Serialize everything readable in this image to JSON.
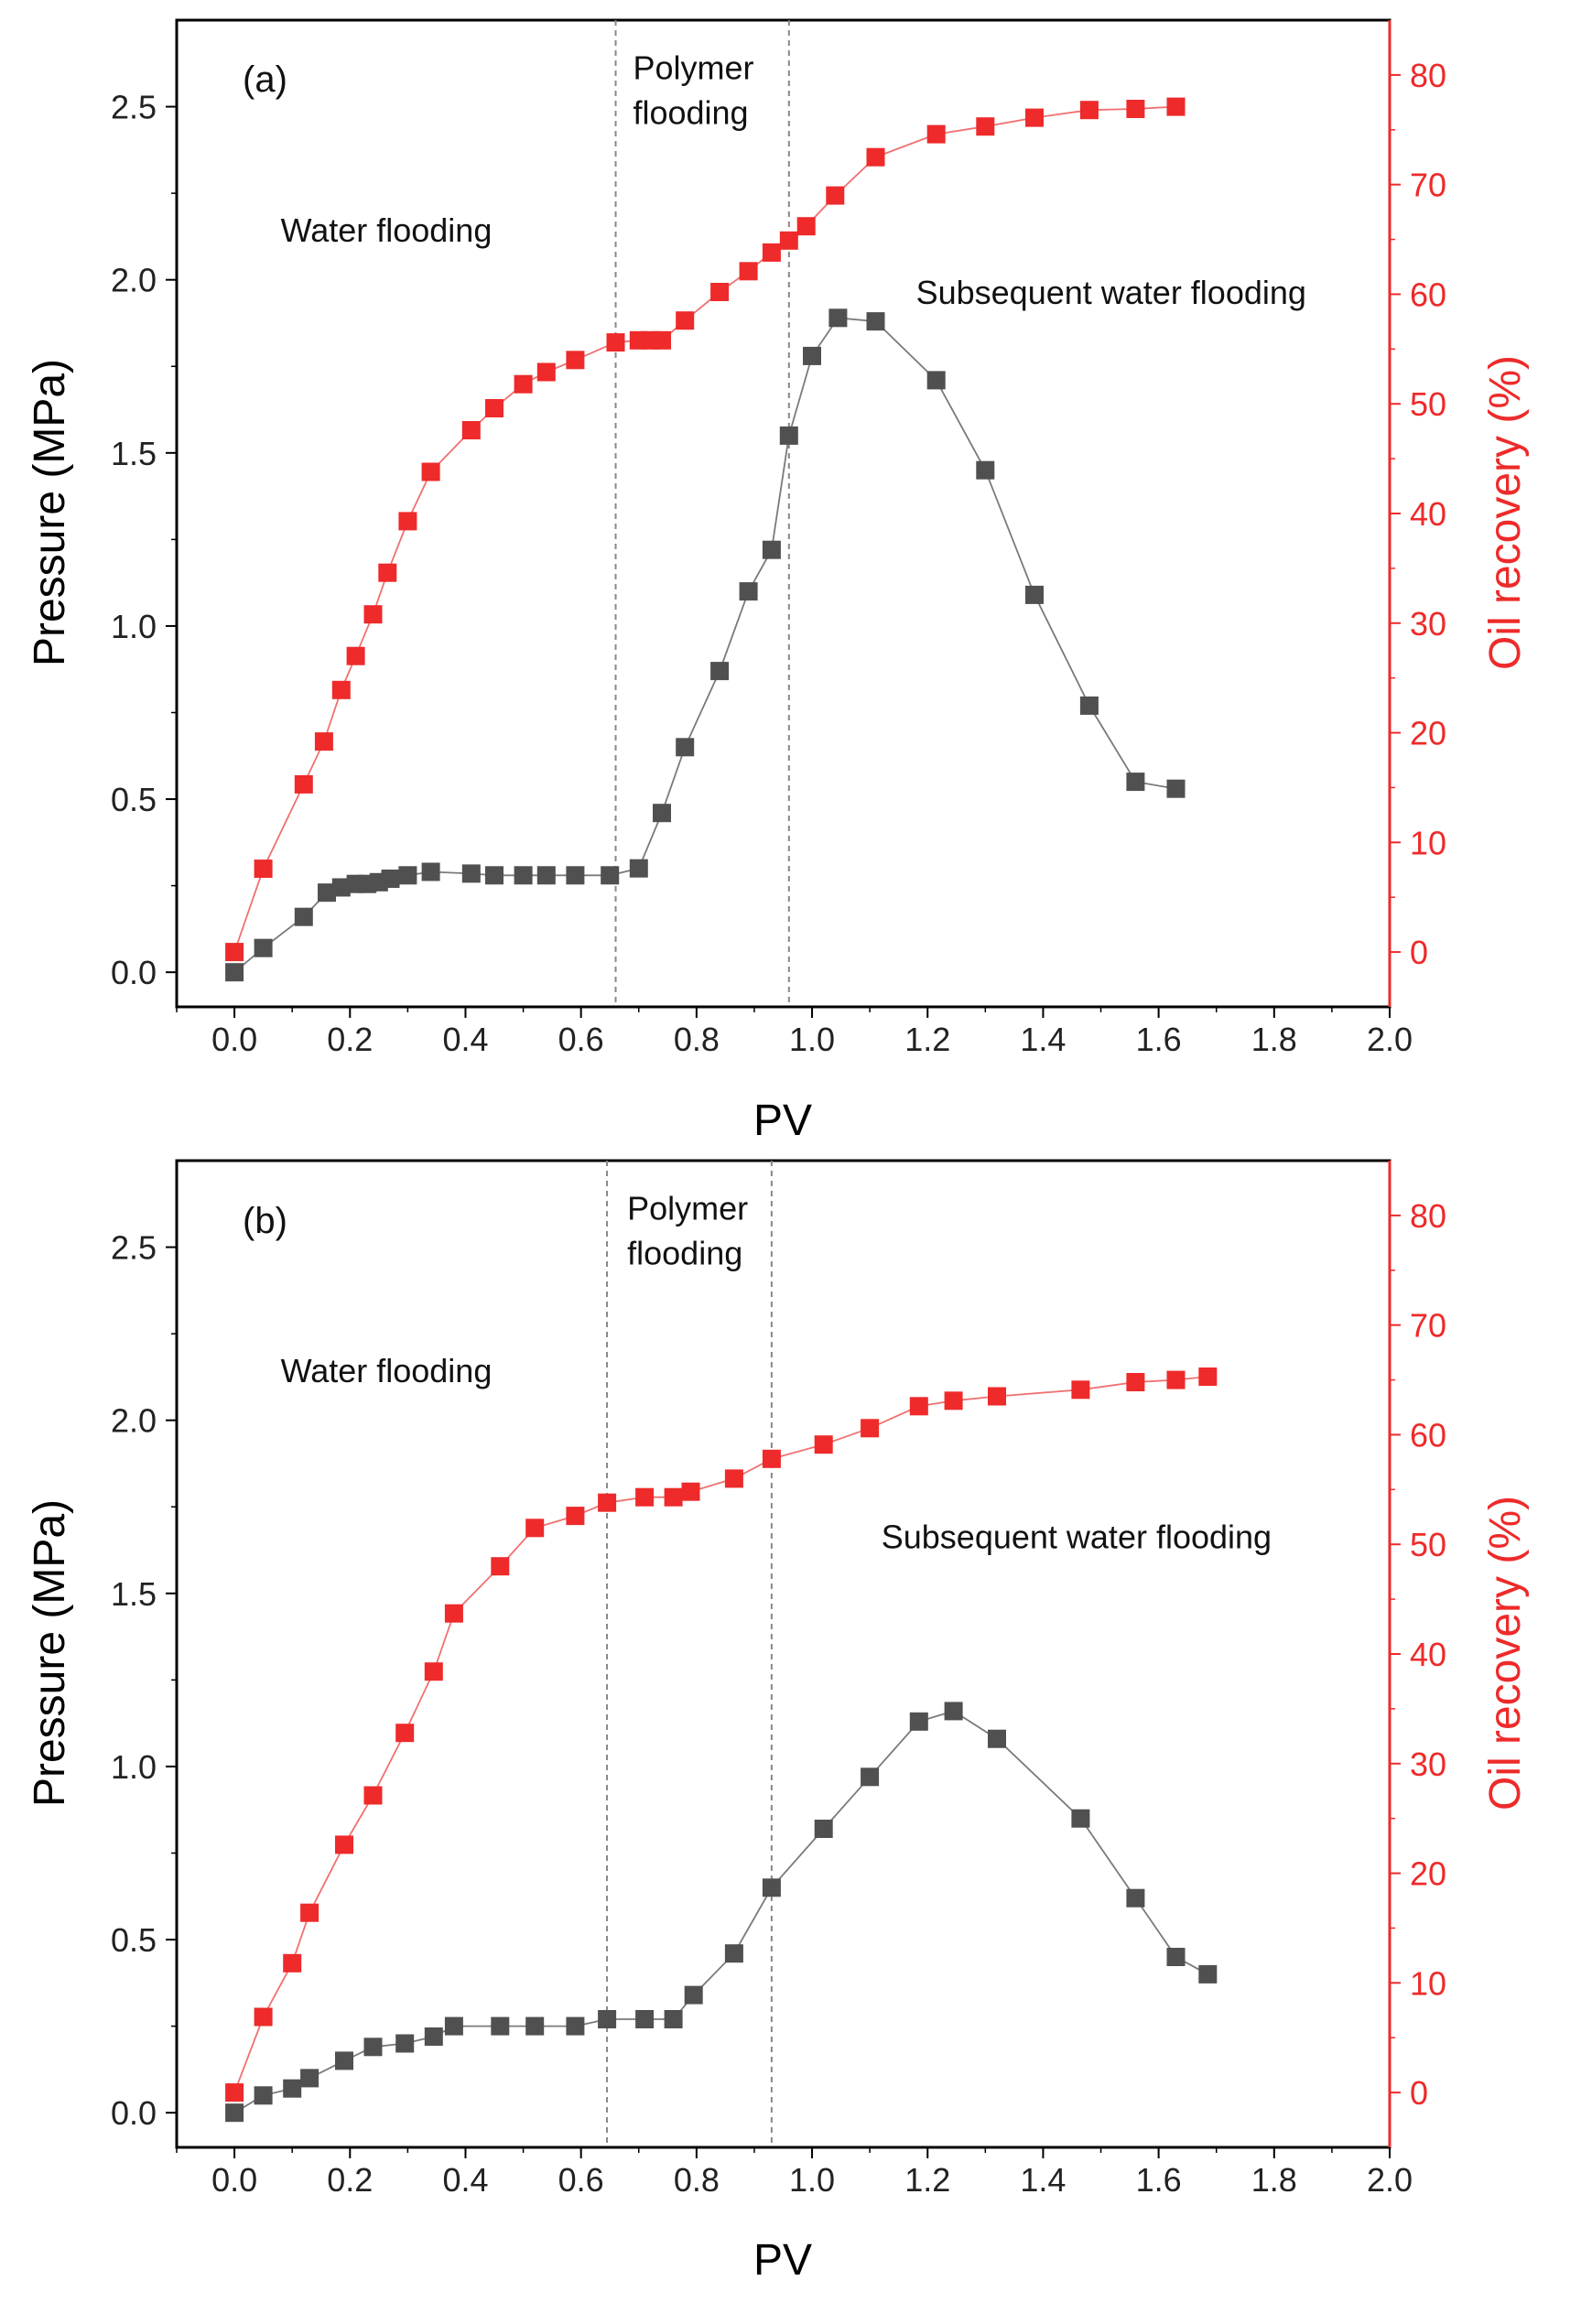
{
  "colors": {
    "pressure": "#505050",
    "pressure_line": "#7a7a7a",
    "recovery": "#ee2a2a",
    "recovery_line": "#f07070",
    "divider": "#888888",
    "axis": "#000000"
  },
  "chart_data": [
    {
      "type": "scatter",
      "panel_label": "(a)",
      "xlabel": "PV",
      "ylabel": "Pressure (MPa)",
      "y2label": "Oil recovery (%)",
      "xlim": [
        -0.1,
        2.0
      ],
      "ylim": [
        -0.1,
        2.75
      ],
      "y2lim": [
        -5,
        85
      ],
      "x_ticks": [
        "0.0",
        "0.2",
        "0.4",
        "0.6",
        "0.8",
        "1.0",
        "1.2",
        "1.4",
        "1.6",
        "1.8",
        "2.0"
      ],
      "y_ticks": [
        "0.0",
        "0.5",
        "1.0",
        "1.5",
        "2.0",
        "2.5"
      ],
      "y2_ticks": [
        "0",
        "10",
        "20",
        "30",
        "40",
        "50",
        "60",
        "70",
        "80"
      ],
      "dividers": [
        0.66,
        0.96
      ],
      "annotations": [
        {
          "text": "Polymer",
          "x": 0.69,
          "y": 2.58,
          "axis": "y"
        },
        {
          "text": "flooding",
          "x": 0.69,
          "y": 2.45,
          "axis": "y"
        },
        {
          "text": "Water flooding",
          "x": 0.08,
          "y": 2.11,
          "axis": "y"
        },
        {
          "text": "Subsequent water flooding",
          "x": 1.18,
          "y": 1.93,
          "axis": "y"
        }
      ],
      "series": [
        {
          "name": "Pressure",
          "axis": "left",
          "x": [
            0.0,
            0.05,
            0.12,
            0.16,
            0.185,
            0.21,
            0.23,
            0.25,
            0.27,
            0.3,
            0.34,
            0.41,
            0.45,
            0.5,
            0.54,
            0.59,
            0.65,
            0.7,
            0.74,
            0.78,
            0.84,
            0.89,
            0.93,
            0.96,
            1.0,
            1.045,
            1.11,
            1.215,
            1.3,
            1.385,
            1.48,
            1.56,
            1.63
          ],
          "values": [
            0.0,
            0.07,
            0.16,
            0.23,
            0.245,
            0.255,
            0.255,
            0.26,
            0.27,
            0.28,
            0.29,
            0.285,
            0.28,
            0.28,
            0.28,
            0.28,
            0.28,
            0.3,
            0.46,
            0.65,
            0.87,
            1.1,
            1.22,
            1.55,
            1.78,
            1.89,
            1.88,
            1.71,
            1.45,
            1.09,
            0.77,
            0.55,
            0.53
          ]
        },
        {
          "name": "Oil recovery",
          "axis": "right",
          "x": [
            0.0,
            0.05,
            0.12,
            0.155,
            0.185,
            0.21,
            0.24,
            0.265,
            0.3,
            0.34,
            0.41,
            0.45,
            0.5,
            0.54,
            0.59,
            0.66,
            0.7,
            0.72,
            0.74,
            0.78,
            0.84,
            0.89,
            0.93,
            0.96,
            0.99,
            1.04,
            1.11,
            1.215,
            1.3,
            1.385,
            1.48,
            1.56,
            1.63
          ],
          "values": [
            0.0,
            7.6,
            15.3,
            19.2,
            23.9,
            27.0,
            30.8,
            34.6,
            39.3,
            43.8,
            47.6,
            49.6,
            51.8,
            52.9,
            54.0,
            55.6,
            55.8,
            55.8,
            55.8,
            57.6,
            60.2,
            62.1,
            63.8,
            64.9,
            66.2,
            69.0,
            72.5,
            74.6,
            75.3,
            76.1,
            76.8,
            76.9,
            77.1
          ]
        }
      ]
    },
    {
      "type": "scatter",
      "panel_label": "(b)",
      "xlabel": "PV",
      "ylabel": "Pressure (MPa)",
      "y2label": "Oil recovery (%)",
      "xlim": [
        -0.1,
        2.0
      ],
      "ylim": [
        -0.1,
        2.75
      ],
      "y2lim": [
        -5,
        85
      ],
      "x_ticks": [
        "0.0",
        "0.2",
        "0.4",
        "0.6",
        "0.8",
        "1.0",
        "1.2",
        "1.4",
        "1.6",
        "1.8",
        "2.0"
      ],
      "y_ticks": [
        "0.0",
        "0.5",
        "1.0",
        "1.5",
        "2.0",
        "2.5"
      ],
      "y2_ticks": [
        "0",
        "10",
        "20",
        "30",
        "40",
        "50",
        "60",
        "70",
        "80"
      ],
      "dividers": [
        0.645,
        0.93
      ],
      "annotations": [
        {
          "text": "Polymer",
          "x": 0.68,
          "y": 2.58,
          "axis": "y"
        },
        {
          "text": "flooding",
          "x": 0.68,
          "y": 2.45,
          "axis": "y"
        },
        {
          "text": "Water flooding",
          "x": 0.08,
          "y": 2.11,
          "axis": "y"
        },
        {
          "text": "Subsequent water flooding",
          "x": 1.12,
          "y": 1.63,
          "axis": "y"
        }
      ],
      "series": [
        {
          "name": "Pressure",
          "axis": "left",
          "x": [
            0.0,
            0.05,
            0.1,
            0.13,
            0.19,
            0.24,
            0.295,
            0.345,
            0.38,
            0.46,
            0.52,
            0.59,
            0.645,
            0.71,
            0.76,
            0.795,
            0.865,
            0.93,
            1.02,
            1.1,
            1.185,
            1.245,
            1.32,
            1.465,
            1.56,
            1.63,
            1.685
          ],
          "values": [
            0.0,
            0.05,
            0.07,
            0.1,
            0.15,
            0.19,
            0.2,
            0.22,
            0.25,
            0.25,
            0.25,
            0.25,
            0.27,
            0.27,
            0.27,
            0.34,
            0.46,
            0.65,
            0.82,
            0.97,
            1.13,
            1.16,
            1.08,
            0.85,
            0.62,
            0.45,
            0.4
          ]
        },
        {
          "name": "Oil recovery",
          "axis": "right",
          "x": [
            0.0,
            0.05,
            0.1,
            0.13,
            0.19,
            0.24,
            0.295,
            0.345,
            0.38,
            0.46,
            0.52,
            0.59,
            0.645,
            0.71,
            0.76,
            0.79,
            0.865,
            0.93,
            1.02,
            1.1,
            1.185,
            1.245,
            1.32,
            1.465,
            1.56,
            1.63,
            1.685
          ],
          "values": [
            0.0,
            6.9,
            11.8,
            16.4,
            22.6,
            27.1,
            32.8,
            38.4,
            43.7,
            48.0,
            51.5,
            52.6,
            53.8,
            54.3,
            54.3,
            54.8,
            56.0,
            57.8,
            59.1,
            60.6,
            62.6,
            63.1,
            63.5,
            64.1,
            64.8,
            65.0,
            65.3
          ]
        }
      ]
    }
  ]
}
